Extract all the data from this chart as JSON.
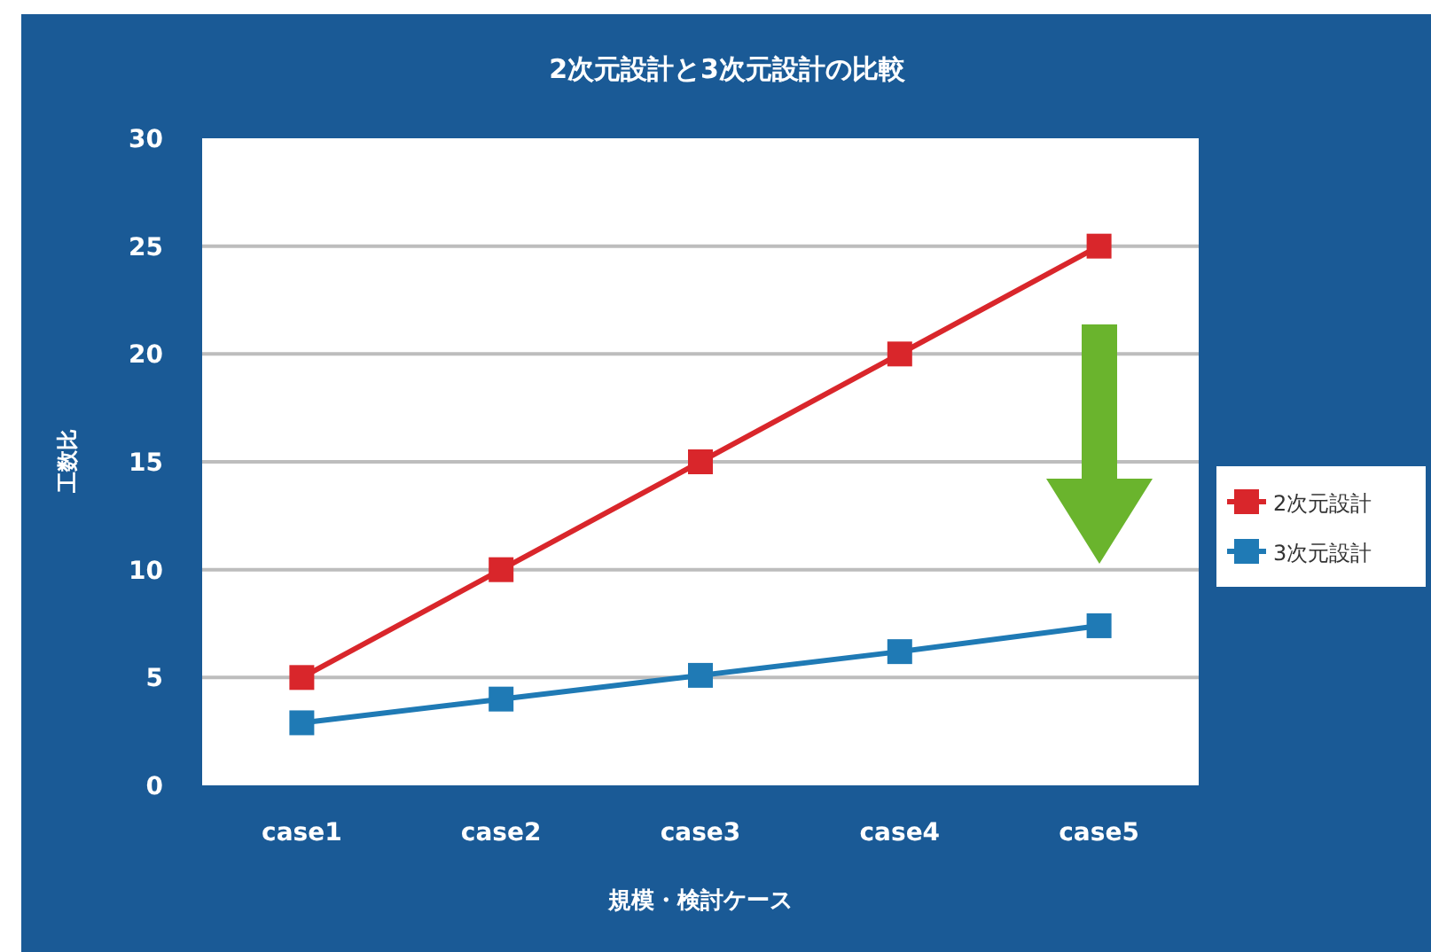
{
  "chart_data": {
    "type": "line",
    "title": "2次元設計と3次元設計の比較",
    "xlabel": "規模・検討ケース",
    "ylabel": "工数比",
    "categories": [
      "case1",
      "case2",
      "case3",
      "case4",
      "case5"
    ],
    "series": [
      {
        "name": "2次元設計",
        "color": "#d9262b",
        "values": [
          5,
          10,
          15,
          20,
          25
        ]
      },
      {
        "name": "3次元設計",
        "color": "#1f7ab5",
        "values": [
          2.9,
          4.0,
          5.1,
          6.2,
          7.4
        ]
      }
    ],
    "ylim": [
      0,
      30
    ],
    "yticks": [
      0,
      5,
      10,
      15,
      20,
      25,
      30
    ],
    "grid": "y",
    "legend": "right",
    "marker": "square",
    "line_style": "solid"
  }
}
